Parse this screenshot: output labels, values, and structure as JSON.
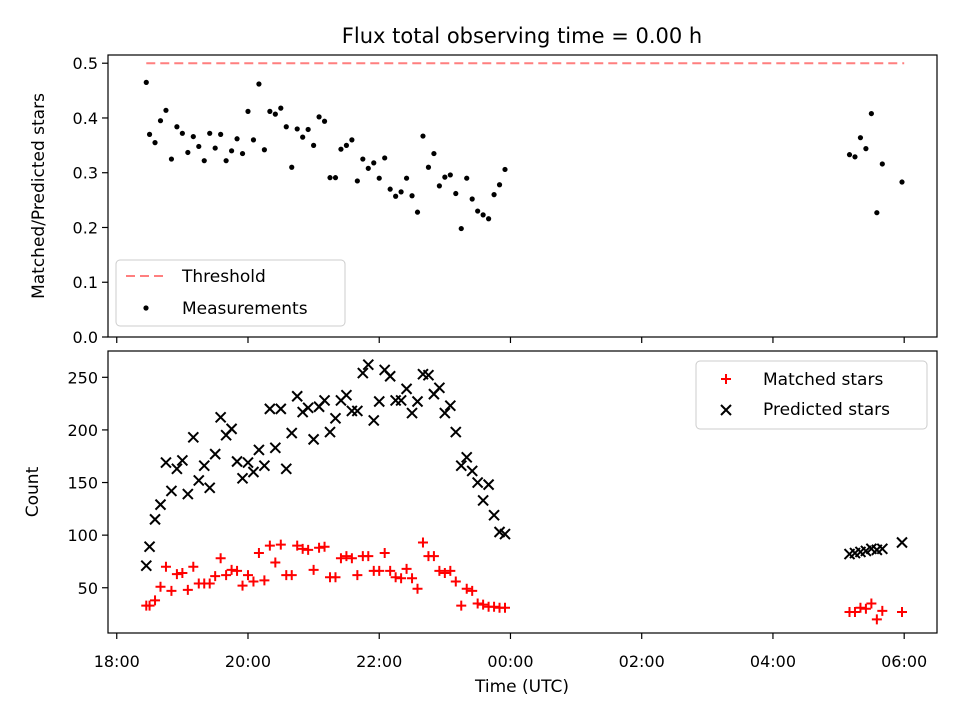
{
  "title": "Flux total observing time = 0.00 h",
  "chart_data": [
    {
      "type": "scatter",
      "ylabel": "Matched/Predicted stars",
      "ylim": [
        0,
        0.515
      ],
      "yticks": [
        "0.0",
        "0.1",
        "0.2",
        "0.3",
        "0.4",
        "0.5"
      ],
      "legend": {
        "placement": "lower-left",
        "entries": [
          "Threshold",
          "Measurements"
        ]
      },
      "threshold": {
        "name": "Threshold",
        "value": 0.5,
        "x_start": "18:27",
        "x_end": "06:00",
        "color": "#ff7f7f",
        "style": "dashed"
      },
      "series": [
        {
          "name": "Measurements",
          "color": "#000000",
          "marker": "dot",
          "points": [
            [
              "18:27",
              0.465
            ],
            [
              "18:30",
              0.37
            ],
            [
              "18:35",
              0.355
            ],
            [
              "18:40",
              0.395
            ],
            [
              "18:45",
              0.414
            ],
            [
              "18:50",
              0.325
            ],
            [
              "18:55",
              0.384
            ],
            [
              "19:00",
              0.372
            ],
            [
              "19:05",
              0.337
            ],
            [
              "19:10",
              0.366
            ],
            [
              "19:15",
              0.348
            ],
            [
              "19:20",
              0.322
            ],
            [
              "19:25",
              0.372
            ],
            [
              "19:30",
              0.345
            ],
            [
              "19:35",
              0.37
            ],
            [
              "19:40",
              0.322
            ],
            [
              "19:45",
              0.34
            ],
            [
              "19:50",
              0.362
            ],
            [
              "19:55",
              0.335
            ],
            [
              "20:00",
              0.412
            ],
            [
              "20:05",
              0.36
            ],
            [
              "20:10",
              0.462
            ],
            [
              "20:15",
              0.342
            ],
            [
              "20:20",
              0.412
            ],
            [
              "20:25",
              0.407
            ],
            [
              "20:30",
              0.418
            ],
            [
              "20:35",
              0.384
            ],
            [
              "20:40",
              0.31
            ],
            [
              "20:45",
              0.38
            ],
            [
              "20:50",
              0.365
            ],
            [
              "20:55",
              0.379
            ],
            [
              "21:00",
              0.35
            ],
            [
              "21:05",
              0.402
            ],
            [
              "21:10",
              0.394
            ],
            [
              "21:15",
              0.291
            ],
            [
              "21:20",
              0.291
            ],
            [
              "21:25",
              0.343
            ],
            [
              "21:30",
              0.35
            ],
            [
              "21:35",
              0.36
            ],
            [
              "21:40",
              0.285
            ],
            [
              "21:45",
              0.325
            ],
            [
              "21:50",
              0.308
            ],
            [
              "21:55",
              0.318
            ],
            [
              "22:00",
              0.29
            ],
            [
              "22:05",
              0.327
            ],
            [
              "22:10",
              0.27
            ],
            [
              "22:15",
              0.257
            ],
            [
              "22:20",
              0.265
            ],
            [
              "22:25",
              0.29
            ],
            [
              "22:30",
              0.258
            ],
            [
              "22:35",
              0.228
            ],
            [
              "22:40",
              0.367
            ],
            [
              "22:45",
              0.31
            ],
            [
              "22:50",
              0.335
            ],
            [
              "22:55",
              0.276
            ],
            [
              "23:00",
              0.292
            ],
            [
              "23:05",
              0.296
            ],
            [
              "23:10",
              0.262
            ],
            [
              "23:15",
              0.198
            ],
            [
              "23:20",
              0.29
            ],
            [
              "23:25",
              0.252
            ],
            [
              "23:30",
              0.23
            ],
            [
              "23:35",
              0.223
            ],
            [
              "23:40",
              0.216
            ],
            [
              "23:45",
              0.26
            ],
            [
              "23:50",
              0.278
            ],
            [
              "23:55",
              0.306
            ],
            [
              "05:10",
              0.333
            ],
            [
              "05:15",
              0.329
            ],
            [
              "05:20",
              0.364
            ],
            [
              "05:25",
              0.344
            ],
            [
              "05:30",
              0.408
            ],
            [
              "05:35",
              0.227
            ],
            [
              "05:40",
              0.316
            ],
            [
              "05:58",
              0.283
            ]
          ]
        }
      ]
    },
    {
      "type": "scatter",
      "xlabel": "Time (UTC)",
      "ylabel": "Count",
      "xticks": [
        "18:00",
        "20:00",
        "22:00",
        "00:00",
        "02:00",
        "04:00",
        "06:00"
      ],
      "xlim": [
        "17:52",
        "06:30"
      ],
      "ylim": [
        7,
        275
      ],
      "yticks": [
        "50",
        "100",
        "150",
        "200",
        "250"
      ],
      "legend": {
        "placement": "top-right",
        "entries": [
          "Matched stars",
          "Predicted stars"
        ]
      },
      "series": [
        {
          "name": "Matched stars",
          "color": "#ff0000",
          "marker": "plus",
          "points": [
            [
              "18:27",
              33
            ],
            [
              "18:30",
              33
            ],
            [
              "18:35",
              38
            ],
            [
              "18:40",
              51
            ],
            [
              "18:45",
              70
            ],
            [
              "18:50",
              47
            ],
            [
              "18:55",
              63
            ],
            [
              "19:00",
              64
            ],
            [
              "19:05",
              48
            ],
            [
              "19:10",
              70
            ],
            [
              "19:15",
              54
            ],
            [
              "19:20",
              54
            ],
            [
              "19:25",
              54
            ],
            [
              "19:30",
              61
            ],
            [
              "19:35",
              78
            ],
            [
              "19:40",
              62
            ],
            [
              "19:45",
              67
            ],
            [
              "19:50",
              66
            ],
            [
              "19:55",
              52
            ],
            [
              "20:00",
              62
            ],
            [
              "20:05",
              56
            ],
            [
              "20:10",
              83
            ],
            [
              "20:15",
              57
            ],
            [
              "20:20",
              90
            ],
            [
              "20:25",
              74
            ],
            [
              "20:30",
              91
            ],
            [
              "20:35",
              62
            ],
            [
              "20:40",
              62
            ],
            [
              "20:45",
              90
            ],
            [
              "20:50",
              87
            ],
            [
              "20:55",
              86
            ],
            [
              "21:00",
              67
            ],
            [
              "21:05",
              88
            ],
            [
              "21:10",
              89
            ],
            [
              "21:15",
              60
            ],
            [
              "21:20",
              60
            ],
            [
              "21:25",
              78
            ],
            [
              "21:30",
              80
            ],
            [
              "21:35",
              78
            ],
            [
              "21:40",
              62
            ],
            [
              "21:45",
              80
            ],
            [
              "21:50",
              80
            ],
            [
              "21:55",
              66
            ],
            [
              "22:00",
              66
            ],
            [
              "22:05",
              83
            ],
            [
              "22:10",
              66
            ],
            [
              "22:15",
              60
            ],
            [
              "22:20",
              59
            ],
            [
              "22:25",
              68
            ],
            [
              "22:30",
              59
            ],
            [
              "22:35",
              49
            ],
            [
              "22:40",
              93
            ],
            [
              "22:45",
              80
            ],
            [
              "22:50",
              80
            ],
            [
              "22:55",
              66
            ],
            [
              "23:00",
              64
            ],
            [
              "23:05",
              66
            ],
            [
              "23:10",
              56
            ],
            [
              "23:15",
              33
            ],
            [
              "23:20",
              49
            ],
            [
              "23:25",
              47
            ],
            [
              "23:30",
              35
            ],
            [
              "23:35",
              34
            ],
            [
              "23:40",
              32
            ],
            [
              "23:45",
              32
            ],
            [
              "23:50",
              31
            ],
            [
              "23:55",
              31
            ],
            [
              "05:10",
              27
            ],
            [
              "05:15",
              27
            ],
            [
              "05:20",
              31
            ],
            [
              "05:25",
              30
            ],
            [
              "05:30",
              35
            ],
            [
              "05:35",
              20
            ],
            [
              "05:40",
              28
            ],
            [
              "05:58",
              27
            ]
          ]
        },
        {
          "name": "Predicted stars",
          "color": "#000000",
          "marker": "x",
          "points": [
            [
              "18:27",
              71
            ],
            [
              "18:30",
              89
            ],
            [
              "18:35",
              115
            ],
            [
              "18:40",
              129
            ],
            [
              "18:45",
              169
            ],
            [
              "18:50",
              142
            ],
            [
              "18:55",
              163
            ],
            [
              "19:00",
              171
            ],
            [
              "19:05",
              139
            ],
            [
              "19:10",
              193
            ],
            [
              "19:15",
              152
            ],
            [
              "19:20",
              166
            ],
            [
              "19:25",
              145
            ],
            [
              "19:30",
              177
            ],
            [
              "19:35",
              212
            ],
            [
              "19:40",
              195
            ],
            [
              "19:45",
              201
            ],
            [
              "19:50",
              170
            ],
            [
              "19:55",
              154
            ],
            [
              "20:00",
              169
            ],
            [
              "20:05",
              160
            ],
            [
              "20:10",
              181
            ],
            [
              "20:15",
              166
            ],
            [
              "20:20",
              220
            ],
            [
              "20:25",
              183
            ],
            [
              "20:30",
              220
            ],
            [
              "20:35",
              163
            ],
            [
              "20:40",
              197
            ],
            [
              "20:45",
              232
            ],
            [
              "20:50",
              217
            ],
            [
              "20:55",
              221
            ],
            [
              "21:00",
              191
            ],
            [
              "21:05",
              222
            ],
            [
              "21:10",
              228
            ],
            [
              "21:15",
              198
            ],
            [
              "21:20",
              211
            ],
            [
              "21:25",
              228
            ],
            [
              "21:30",
              233
            ],
            [
              "21:35",
              218
            ],
            [
              "21:40",
              218
            ],
            [
              "21:45",
              254
            ],
            [
              "21:50",
              262
            ],
            [
              "21:55",
              209
            ],
            [
              "22:00",
              227
            ],
            [
              "22:05",
              257
            ],
            [
              "22:10",
              251
            ],
            [
              "22:15",
              228
            ],
            [
              "22:20",
              228
            ],
            [
              "22:25",
              239
            ],
            [
              "22:30",
              216
            ],
            [
              "22:35",
              227
            ],
            [
              "22:40",
              253
            ],
            [
              "22:45",
              252
            ],
            [
              "22:50",
              234
            ],
            [
              "22:55",
              240
            ],
            [
              "23:00",
              216
            ],
            [
              "23:05",
              223
            ],
            [
              "23:10",
              198
            ],
            [
              "23:15",
              166
            ],
            [
              "23:20",
              174
            ],
            [
              "23:25",
              161
            ],
            [
              "23:30",
              150
            ],
            [
              "23:35",
              133
            ],
            [
              "23:40",
              148
            ],
            [
              "23:45",
              119
            ],
            [
              "23:50",
              103
            ],
            [
              "23:55",
              101
            ],
            [
              "05:10",
              82
            ],
            [
              "05:15",
              83
            ],
            [
              "05:20",
              84
            ],
            [
              "05:25",
              85
            ],
            [
              "05:30",
              87
            ],
            [
              "05:35",
              86
            ],
            [
              "05:40",
              87
            ],
            [
              "05:58",
              93
            ]
          ]
        }
      ]
    }
  ]
}
